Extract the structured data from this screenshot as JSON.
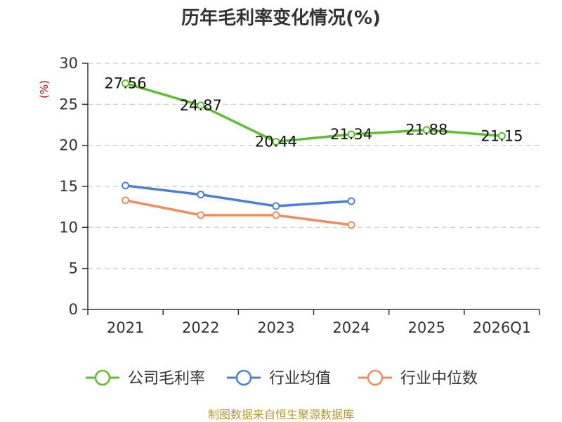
{
  "chart_data": {
    "type": "line",
    "title": "历年毛利率变化情况(%)",
    "ylabel": "(%)",
    "categories": [
      "2021",
      "2022",
      "2023",
      "2024",
      "2025",
      "2026Q1"
    ],
    "ylim": [
      0,
      30
    ],
    "yticks": [
      0,
      5,
      10,
      15,
      20,
      25,
      30
    ],
    "grid": true,
    "legend_position": "bottom",
    "series": [
      {
        "name": "公司毛利率",
        "color": "#5cc02e",
        "values": [
          27.56,
          24.87,
          20.44,
          21.34,
          21.88,
          21.15
        ],
        "labels": [
          "27.56",
          "24.87",
          "20.44",
          "21.34",
          "21.88",
          "21.15"
        ]
      },
      {
        "name": "行业均值",
        "color": "#4a7fd6",
        "values": [
          15.1,
          14.0,
          12.6,
          13.2,
          null,
          null
        ]
      },
      {
        "name": "行业中位数",
        "color": "#f28c5a",
        "values": [
          13.3,
          11.5,
          11.5,
          10.3,
          null,
          null
        ]
      }
    ],
    "source": "制图数据来自恒生聚源数据库"
  }
}
